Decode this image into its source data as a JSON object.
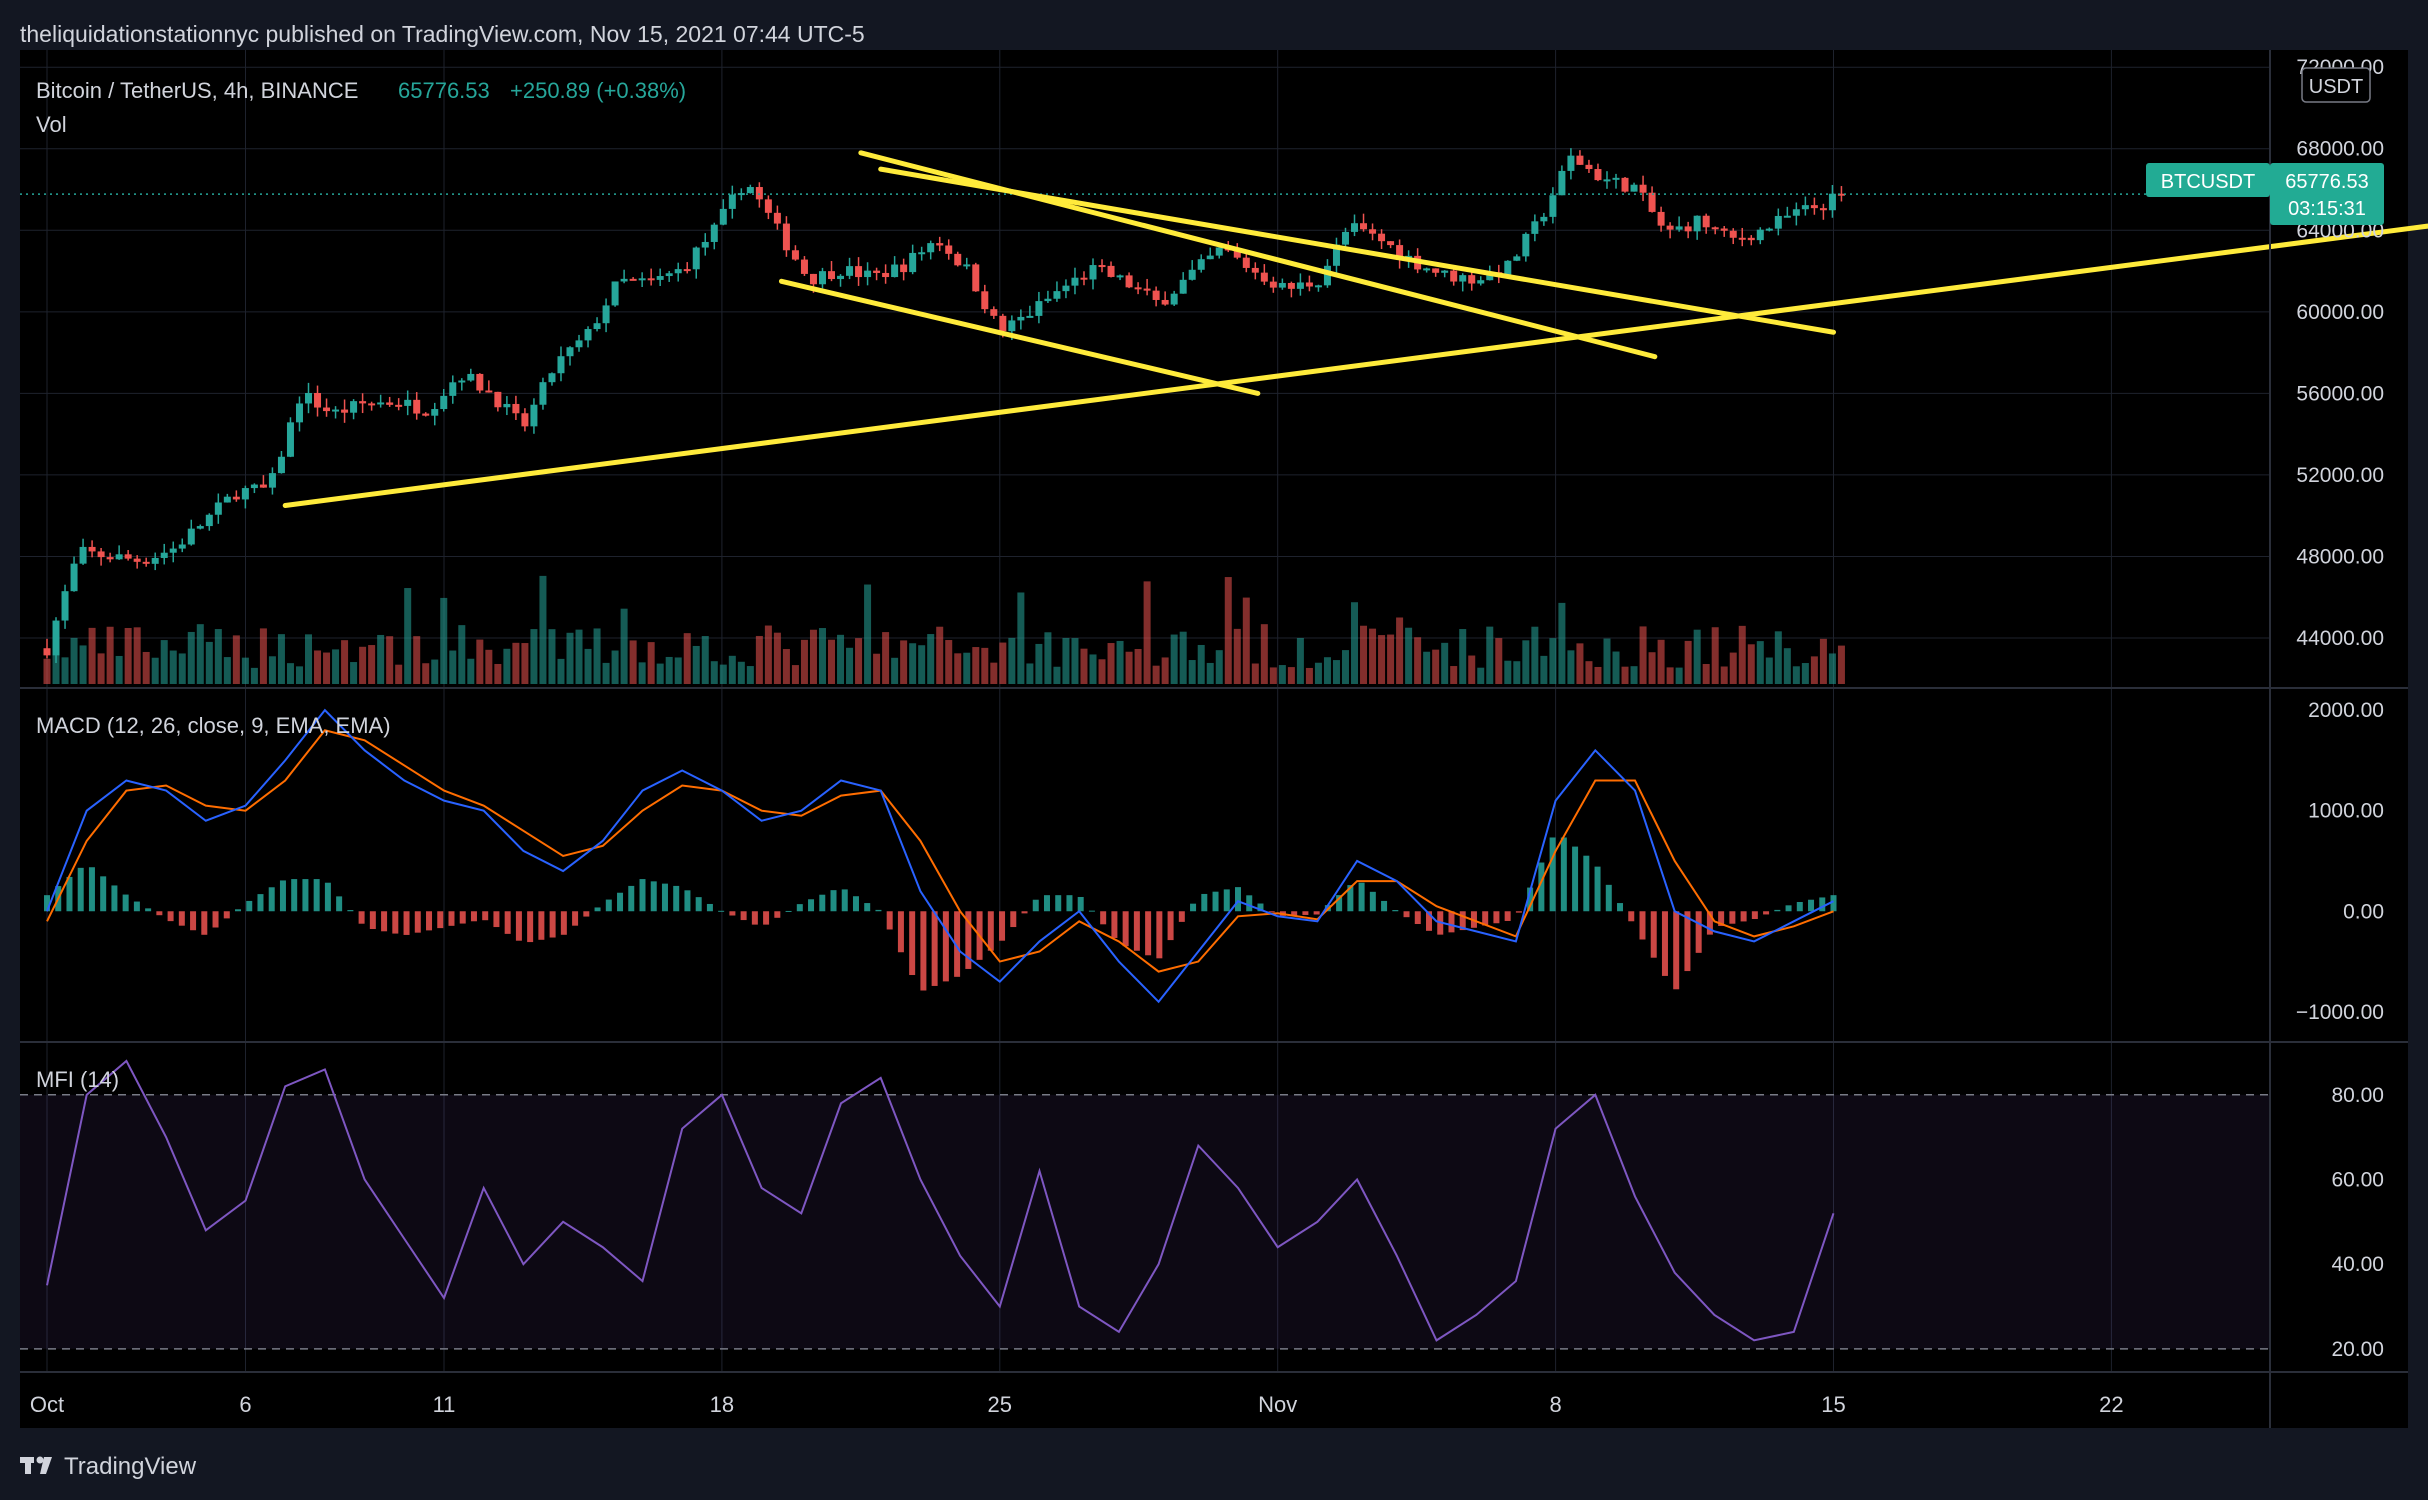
{
  "header": {
    "publish_line": "theliquidationstationnyc published on TradingView.com, Nov 15, 2021 07:44 UTC-5"
  },
  "legend": {
    "symbol": "Bitcoin / TetherUS, 4h, BINANCE",
    "last": "65776.53",
    "change": "+250.89 (+0.38%)",
    "vol_label": "Vol",
    "macd_label": "MACD (12, 26, close, 9, EMA, EMA)",
    "mfi_label": "MFI (14)"
  },
  "price_scale": {
    "currency": "USDT",
    "ticks": [
      "72000.00",
      "68000.00",
      "64000.00",
      "60000.00",
      "56000.00",
      "52000.00",
      "48000.00",
      "44000.00"
    ],
    "tick_values": [
      72000,
      68000,
      64000,
      60000,
      56000,
      52000,
      48000,
      44000
    ],
    "symbol_tag": "BTCUSDT",
    "last_price": "65776.53",
    "countdown": "03:15:31"
  },
  "macd_scale": {
    "ticks": [
      "2000.00",
      "1000.00",
      "0.00",
      "−1000.00"
    ],
    "tick_values": [
      2000,
      1000,
      0,
      -1000
    ]
  },
  "mfi_scale": {
    "ticks": [
      "80.00",
      "60.00",
      "40.00",
      "20.00"
    ],
    "tick_values": [
      80,
      60,
      40,
      20
    ]
  },
  "time_axis": {
    "labels": [
      "Oct",
      "6",
      "11",
      "18",
      "25",
      "Nov",
      "8",
      "15",
      "22"
    ],
    "day_index": [
      0,
      5,
      10,
      17,
      24,
      31,
      38,
      45,
      52
    ]
  },
  "brand": {
    "name": "TradingView"
  },
  "colors": {
    "bg": "#131722",
    "up": "#26a69a",
    "down": "#ef5350",
    "trend": "#ffeb3b",
    "macd": "#2962ff",
    "signal": "#ff6d00",
    "mfi": "#7e57c2",
    "accent": "#22ab94"
  },
  "chart_data": {
    "type": "line",
    "title": "Bitcoin / TetherUS, 4h, BINANCE",
    "ylim": [
      41500,
      72500
    ],
    "price_path": {
      "day": [
        0,
        0.8,
        1.6,
        2.4,
        3.2,
        4,
        4.8,
        5.6,
        6.4,
        7.2,
        8,
        8.8,
        9.6,
        10.4,
        11.2,
        12,
        12.8,
        13.6,
        14.4,
        15.2,
        16,
        16.8,
        17.6,
        18.4,
        19.2,
        20,
        20.8,
        21.6,
        22.4,
        23.2,
        24,
        24.8,
        25.6,
        26.4,
        27.2,
        28,
        28.8,
        29.6,
        30.4,
        31.2,
        32,
        32.8,
        33.6,
        34.4,
        35.2,
        36,
        36.8,
        37.6,
        38.4,
        39.2,
        40,
        40.8,
        41.6,
        42.4,
        43.2,
        44,
        44.8,
        45.2
      ],
      "value": [
        43500,
        48200,
        48000,
        47800,
        48400,
        49800,
        51200,
        51300,
        56000,
        55000,
        55500,
        55600,
        55200,
        57000,
        56000,
        54300,
        57400,
        58800,
        61500,
        61400,
        62100,
        64000,
        66500,
        64000,
        61600,
        62100,
        61700,
        62300,
        63600,
        62000,
        59000,
        60000,
        61200,
        62100,
        61400,
        60400,
        61800,
        63100,
        62000,
        61100,
        61500,
        64200,
        63500,
        62500,
        61800,
        61600,
        62200,
        64500,
        67600,
        66500,
        66100,
        63800,
        64500,
        63500,
        64000,
        64800,
        65300,
        65776.53
      ]
    },
    "volume_bars": 200,
    "trendlines_usd": [
      {
        "from": [
          6,
          50500
        ],
        "to": [
          69,
          66500
        ]
      },
      {
        "from": [
          20.5,
          67800
        ],
        "to": [
          40.5,
          57800
        ]
      },
      {
        "from": [
          21,
          67000
        ],
        "to": [
          45,
          59000
        ]
      },
      {
        "from": [
          18.5,
          61500
        ],
        "to": [
          30.5,
          56000
        ]
      }
    ],
    "macd": {
      "ylim": [
        -1300,
        2200
      ],
      "day": [
        0,
        1,
        2,
        3,
        4,
        5,
        6,
        7,
        8,
        9,
        10,
        11,
        12,
        13,
        14,
        15,
        16,
        17,
        18,
        19,
        20,
        21,
        22,
        23,
        24,
        25,
        26,
        27,
        28,
        29,
        30,
        31,
        32,
        33,
        34,
        35,
        36,
        37,
        38,
        39,
        40,
        41,
        42,
        43,
        44,
        45
      ],
      "macd": [
        0,
        1000,
        1300,
        1200,
        900,
        1050,
        1500,
        2000,
        1600,
        1300,
        1100,
        1000,
        600,
        400,
        700,
        1200,
        1400,
        1200,
        900,
        1000,
        1300,
        1200,
        200,
        -400,
        -700,
        -300,
        0,
        -500,
        -900,
        -400,
        100,
        -50,
        -100,
        500,
        300,
        -100,
        -200,
        -300,
        1100,
        1600,
        1200,
        0,
        -200,
        -300,
        -100,
        100
      ],
      "signal": [
        -100,
        700,
        1200,
        1250,
        1050,
        1000,
        1300,
        1800,
        1700,
        1450,
        1200,
        1050,
        800,
        550,
        650,
        1000,
        1250,
        1200,
        1000,
        950,
        1150,
        1200,
        700,
        0,
        -500,
        -400,
        -100,
        -300,
        -600,
        -500,
        -50,
        -20,
        -80,
        300,
        300,
        50,
        -100,
        -250,
        600,
        1300,
        1300,
        500,
        -100,
        -250,
        -150,
        0
      ]
    },
    "mfi": {
      "ylim": [
        15,
        92
      ],
      "day": [
        0,
        1,
        2,
        3,
        4,
        5,
        6,
        7,
        8,
        9,
        10,
        11,
        12,
        13,
        14,
        15,
        16,
        17,
        18,
        19,
        20,
        21,
        22,
        23,
        24,
        25,
        26,
        27,
        28,
        29,
        30,
        31,
        32,
        33,
        34,
        35,
        36,
        37,
        38,
        39,
        40,
        41,
        42,
        43,
        44,
        45
      ],
      "value": [
        35,
        80,
        88,
        70,
        48,
        55,
        82,
        86,
        60,
        46,
        32,
        58,
        40,
        50,
        44,
        36,
        72,
        80,
        58,
        52,
        78,
        84,
        60,
        42,
        30,
        62,
        30,
        24,
        40,
        68,
        58,
        44,
        50,
        60,
        42,
        22,
        28,
        36,
        72,
        80,
        56,
        38,
        28,
        22,
        24,
        52
      ],
      "overbought": 80,
      "oversold": 20
    }
  }
}
